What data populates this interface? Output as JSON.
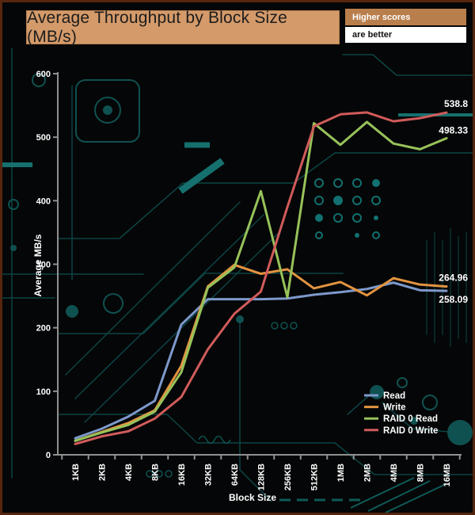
{
  "header": {
    "title": "Average Throughput by Block Size (MB/s)",
    "note_line1": "Higher scores",
    "note_line2": "are better"
  },
  "chart_data": {
    "type": "line",
    "title": "Average Throughput by Block Size (MB/s)",
    "xlabel": "Block Size",
    "ylabel": "Average MB/s",
    "ylim": [
      0,
      600
    ],
    "yticks": [
      0,
      100,
      200,
      300,
      400,
      500,
      600
    ],
    "grid": false,
    "legend_position": "lower right",
    "categories": [
      "1KB",
      "2KB",
      "4KB",
      "8KB",
      "16KB",
      "32KB",
      "64KB",
      "128KB",
      "256KB",
      "512KB",
      "1MB",
      "2MB",
      "4MB",
      "8MB",
      "16MB"
    ],
    "series": [
      {
        "name": "Read",
        "color": "#7d99cb",
        "end_label": "258.09",
        "end_label_dy": 15,
        "values": [
          26,
          41,
          60,
          85,
          205,
          245,
          245,
          245,
          246,
          252,
          256,
          261,
          271,
          259,
          258.09
        ]
      },
      {
        "name": "Write",
        "color": "#e39440",
        "end_label": "264.96",
        "end_label_dy": -7,
        "values": [
          22,
          36,
          50,
          70,
          140,
          265,
          299,
          285,
          292,
          262,
          272,
          251,
          278,
          268,
          264.96
        ]
      },
      {
        "name": "RAID 0 Read",
        "color": "#97c25a",
        "end_label": "498.33",
        "end_label_dy": -6,
        "values": [
          22,
          35,
          47,
          68,
          130,
          263,
          295,
          415,
          248,
          522,
          488,
          524,
          490,
          481,
          498.33
        ]
      },
      {
        "name": "RAID 0 Write",
        "color": "#d15b5b",
        "end_label": "538.8",
        "end_label_dy": -7,
        "values": [
          17,
          29,
          37,
          57,
          91,
          166,
          222,
          257,
          390,
          517,
          536,
          539,
          525,
          530,
          538.8
        ]
      }
    ]
  },
  "colors": {
    "background": "#050607",
    "border": "#55250f",
    "circuit": "#0f5150",
    "axis": "#909090",
    "title_bg": "#d49a6a",
    "note1_bg": "#b87e4c"
  }
}
